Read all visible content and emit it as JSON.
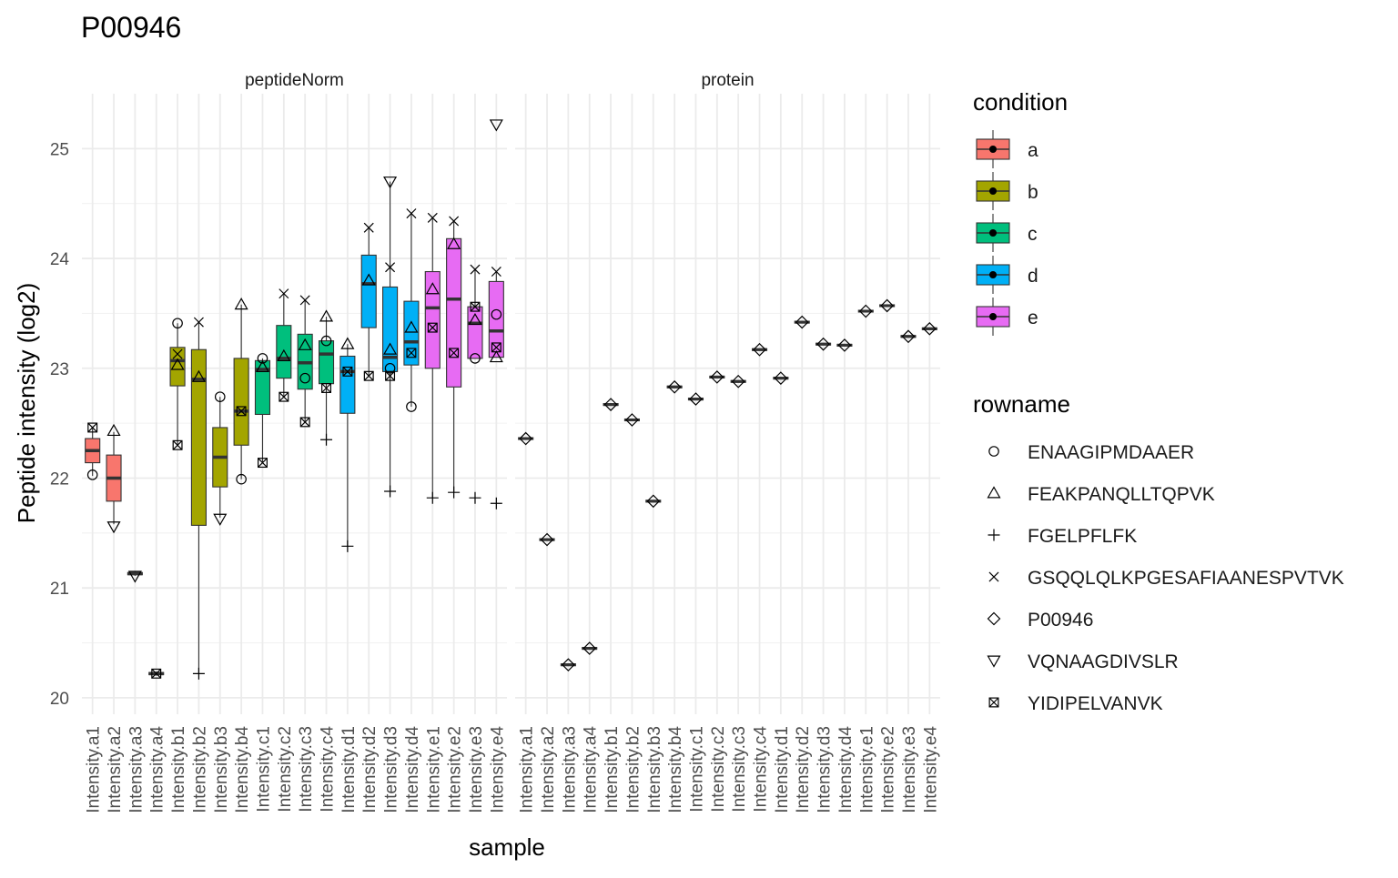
{
  "chart_data": {
    "type": "box",
    "title": "P00946",
    "xlabel": "sample",
    "ylabel": "Peptide intensity (log2)",
    "ylim": [
      19.85,
      25.5
    ],
    "yticks": [
      20,
      21,
      22,
      23,
      24,
      25
    ],
    "grid": true,
    "legend_position": "right",
    "panels": [
      "peptideNorm",
      "protein"
    ],
    "samples": [
      "Intensity.a1",
      "Intensity.a2",
      "Intensity.a3",
      "Intensity.a4",
      "Intensity.b1",
      "Intensity.b2",
      "Intensity.b3",
      "Intensity.b4",
      "Intensity.c1",
      "Intensity.c2",
      "Intensity.c3",
      "Intensity.c4",
      "Intensity.d1",
      "Intensity.d2",
      "Intensity.d3",
      "Intensity.d4",
      "Intensity.e1",
      "Intensity.e2",
      "Intensity.e3",
      "Intensity.e4"
    ],
    "sample_condition": [
      "a",
      "a",
      "a",
      "a",
      "b",
      "b",
      "b",
      "b",
      "c",
      "c",
      "c",
      "c",
      "d",
      "d",
      "d",
      "d",
      "e",
      "e",
      "e",
      "e"
    ],
    "condition_legend": {
      "title": "condition",
      "items": [
        {
          "label": "a",
          "color": "#F8766D"
        },
        {
          "label": "b",
          "color": "#A3A500"
        },
        {
          "label": "c",
          "color": "#00BF7D"
        },
        {
          "label": "d",
          "color": "#00B0F6"
        },
        {
          "label": "e",
          "color": "#E76BF3"
        }
      ]
    },
    "rowname_legend": {
      "title": "rowname",
      "items": [
        {
          "label": "ENAAGIPMDAAER",
          "shape": "circle"
        },
        {
          "label": "FEAKPANQLLTQPVK",
          "shape": "triangle"
        },
        {
          "label": "FGELPFLFK",
          "shape": "plus"
        },
        {
          "label": "GSQQLQLKPGESAFIAANESPVTVK",
          "shape": "cross"
        },
        {
          "label": "P00946",
          "shape": "diamond"
        },
        {
          "label": "VQNAAGDIVSLR",
          "shape": "triangle-down"
        },
        {
          "label": "YIDIPELVANVK",
          "shape": "square-cross"
        }
      ]
    },
    "peptideNorm_boxes": [
      {
        "q1": 22.14,
        "median": 22.25,
        "q3": 22.36,
        "wmin": 22.02,
        "wmax": 22.46
      },
      {
        "q1": 21.79,
        "median": 22.0,
        "q3": 22.21,
        "wmin": 21.58,
        "wmax": 22.42
      },
      {
        "q1": 21.12,
        "median": 21.13,
        "q3": 21.14,
        "wmin": 21.11,
        "wmax": 21.15
      },
      {
        "q1": 20.21,
        "median": 20.22,
        "q3": 20.23,
        "wmin": 20.2,
        "wmax": 20.24
      },
      {
        "q1": 22.84,
        "median": 23.07,
        "q3": 23.19,
        "wmin": 22.3,
        "wmax": 23.41
      },
      {
        "q1": 21.57,
        "median": 22.9,
        "q3": 23.17,
        "wmin": 20.22,
        "wmax": 23.42
      },
      {
        "q1": 21.92,
        "median": 22.19,
        "q3": 22.46,
        "wmin": 21.64,
        "wmax": 22.74
      },
      {
        "q1": 22.3,
        "median": 22.61,
        "q3": 23.09,
        "wmin": 21.99,
        "wmax": 23.58
      },
      {
        "q1": 22.58,
        "median": 22.99,
        "q3": 23.07,
        "wmin": 22.14,
        "wmax": 23.09
      },
      {
        "q1": 22.91,
        "median": 23.09,
        "q3": 23.39,
        "wmin": 22.74,
        "wmax": 23.68
      },
      {
        "q1": 22.81,
        "median": 23.05,
        "q3": 23.31,
        "wmin": 22.51,
        "wmax": 23.62
      },
      {
        "q1": 22.86,
        "median": 23.13,
        "q3": 23.25,
        "wmin": 22.35,
        "wmax": 23.47
      },
      {
        "q1": 22.59,
        "median": 22.97,
        "q3": 23.11,
        "wmin": 21.38,
        "wmax": 23.22
      },
      {
        "q1": 23.37,
        "median": 23.77,
        "q3": 24.03,
        "wmin": 22.93,
        "wmax": 24.28
      },
      {
        "q1": 22.97,
        "median": 23.1,
        "q3": 23.74,
        "wmin": 21.88,
        "wmax": 24.7
      },
      {
        "q1": 23.03,
        "median": 23.24,
        "q3": 23.61,
        "wmin": 22.65,
        "wmax": 24.41
      },
      {
        "q1": 23.0,
        "median": 23.55,
        "q3": 23.88,
        "wmin": 21.82,
        "wmax": 24.37
      },
      {
        "q1": 22.83,
        "median": 23.63,
        "q3": 24.18,
        "wmin": 21.87,
        "wmax": 24.34
      },
      {
        "q1": 23.09,
        "median": 23.41,
        "q3": 23.56,
        "wmin": 23.09,
        "wmax": 23.9
      },
      {
        "q1": 23.1,
        "median": 23.34,
        "q3": 23.79,
        "wmin": 23.1,
        "wmax": 23.88
      }
    ],
    "peptideNorm_points": [
      {
        "sample": 0,
        "shape": "circle",
        "y": 22.03
      },
      {
        "sample": 0,
        "shape": "square-cross",
        "y": 22.46
      },
      {
        "sample": 1,
        "shape": "triangle",
        "y": 22.43
      },
      {
        "sample": 1,
        "shape": "triangle-down",
        "y": 21.56
      },
      {
        "sample": 2,
        "shape": "triangle-down",
        "y": 21.11
      },
      {
        "sample": 3,
        "shape": "square-cross",
        "y": 20.22
      },
      {
        "sample": 4,
        "shape": "circle",
        "y": 23.41
      },
      {
        "sample": 4,
        "shape": "cross",
        "y": 23.13
      },
      {
        "sample": 4,
        "shape": "triangle",
        "y": 23.03
      },
      {
        "sample": 4,
        "shape": "square-cross",
        "y": 22.3
      },
      {
        "sample": 5,
        "shape": "cross",
        "y": 23.42
      },
      {
        "sample": 5,
        "shape": "triangle",
        "y": 22.92
      },
      {
        "sample": 5,
        "shape": "plus",
        "y": 20.22
      },
      {
        "sample": 6,
        "shape": "circle",
        "y": 22.74
      },
      {
        "sample": 6,
        "shape": "triangle-down",
        "y": 21.63
      },
      {
        "sample": 7,
        "shape": "triangle",
        "y": 23.58
      },
      {
        "sample": 7,
        "shape": "square-cross",
        "y": 22.61
      },
      {
        "sample": 7,
        "shape": "circle",
        "y": 21.99
      },
      {
        "sample": 8,
        "shape": "circle",
        "y": 23.09
      },
      {
        "sample": 8,
        "shape": "triangle",
        "y": 23.01
      },
      {
        "sample": 8,
        "shape": "square-cross",
        "y": 22.14
      },
      {
        "sample": 9,
        "shape": "cross",
        "y": 23.68
      },
      {
        "sample": 9,
        "shape": "triangle",
        "y": 23.11
      },
      {
        "sample": 9,
        "shape": "square-cross",
        "y": 22.74
      },
      {
        "sample": 10,
        "shape": "cross",
        "y": 23.62
      },
      {
        "sample": 10,
        "shape": "triangle",
        "y": 23.21
      },
      {
        "sample": 10,
        "shape": "circle",
        "y": 22.91
      },
      {
        "sample": 10,
        "shape": "square-cross",
        "y": 22.51
      },
      {
        "sample": 11,
        "shape": "triangle",
        "y": 23.47
      },
      {
        "sample": 11,
        "shape": "circle",
        "y": 23.25
      },
      {
        "sample": 11,
        "shape": "square-cross",
        "y": 22.82
      },
      {
        "sample": 11,
        "shape": "plus",
        "y": 22.35
      },
      {
        "sample": 12,
        "shape": "triangle",
        "y": 23.22
      },
      {
        "sample": 12,
        "shape": "square-cross",
        "y": 22.97
      },
      {
        "sample": 12,
        "shape": "plus",
        "y": 21.38
      },
      {
        "sample": 13,
        "shape": "cross",
        "y": 24.28
      },
      {
        "sample": 13,
        "shape": "triangle",
        "y": 23.8
      },
      {
        "sample": 13,
        "shape": "square-cross",
        "y": 22.93
      },
      {
        "sample": 14,
        "shape": "triangle-down",
        "y": 24.7
      },
      {
        "sample": 14,
        "shape": "cross",
        "y": 23.92
      },
      {
        "sample": 14,
        "shape": "triangle",
        "y": 23.17
      },
      {
        "sample": 14,
        "shape": "circle",
        "y": 23.0
      },
      {
        "sample": 14,
        "shape": "square-cross",
        "y": 22.93
      },
      {
        "sample": 14,
        "shape": "plus",
        "y": 21.88
      },
      {
        "sample": 15,
        "shape": "cross",
        "y": 24.41
      },
      {
        "sample": 15,
        "shape": "triangle",
        "y": 23.37
      },
      {
        "sample": 15,
        "shape": "square-cross",
        "y": 23.14
      },
      {
        "sample": 15,
        "shape": "circle",
        "y": 22.65
      },
      {
        "sample": 16,
        "shape": "cross",
        "y": 24.37
      },
      {
        "sample": 16,
        "shape": "triangle",
        "y": 23.72
      },
      {
        "sample": 16,
        "shape": "square-cross",
        "y": 23.37
      },
      {
        "sample": 16,
        "shape": "plus",
        "y": 21.82
      },
      {
        "sample": 17,
        "shape": "cross",
        "y": 24.34
      },
      {
        "sample": 17,
        "shape": "triangle",
        "y": 24.13
      },
      {
        "sample": 17,
        "shape": "square-cross",
        "y": 23.14
      },
      {
        "sample": 17,
        "shape": "plus",
        "y": 21.87
      },
      {
        "sample": 18,
        "shape": "cross",
        "y": 23.9
      },
      {
        "sample": 18,
        "shape": "square-cross",
        "y": 23.56
      },
      {
        "sample": 18,
        "shape": "triangle",
        "y": 23.44
      },
      {
        "sample": 18,
        "shape": "circle",
        "y": 23.09
      },
      {
        "sample": 18,
        "shape": "plus",
        "y": 21.82
      },
      {
        "sample": 19,
        "shape": "triangle-down",
        "y": 25.22
      },
      {
        "sample": 19,
        "shape": "cross",
        "y": 23.88
      },
      {
        "sample": 19,
        "shape": "circle",
        "y": 23.49
      },
      {
        "sample": 19,
        "shape": "square-cross",
        "y": 23.19
      },
      {
        "sample": 19,
        "shape": "triangle",
        "y": 23.1
      },
      {
        "sample": 19,
        "shape": "plus",
        "y": 21.77
      }
    ],
    "protein_values": [
      22.36,
      21.44,
      20.3,
      20.45,
      22.67,
      22.53,
      21.79,
      22.83,
      22.72,
      22.92,
      22.88,
      23.17,
      22.91,
      23.42,
      23.22,
      23.21,
      23.52,
      23.57,
      23.29,
      23.36
    ]
  }
}
